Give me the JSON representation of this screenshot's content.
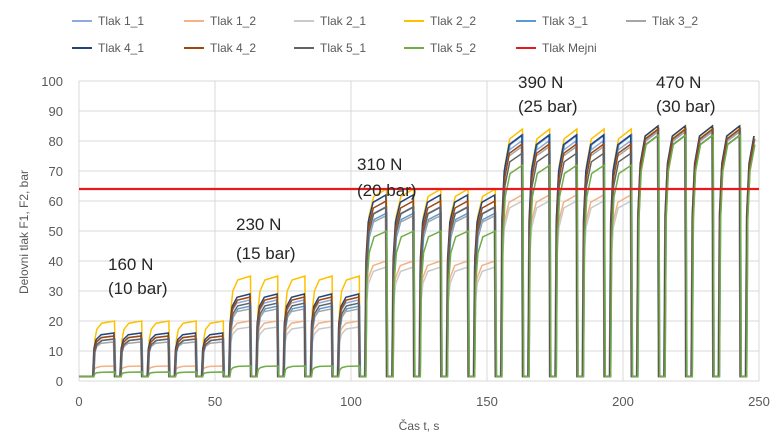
{
  "chart_data": {
    "type": "line",
    "xlabel": "Čas t, s",
    "ylabel": "Delovni tlak F1, F2, bar",
    "xlim": [
      0,
      250
    ],
    "ylim": [
      0,
      100
    ],
    "xticks": [
      "0",
      "50",
      "100",
      "150",
      "200",
      "250"
    ],
    "yticks": [
      "0",
      "10",
      "20",
      "30",
      "40",
      "50",
      "60",
      "70",
      "80",
      "90",
      "100"
    ],
    "grid": true,
    "legend_position": "top",
    "pulse_period_s": 10,
    "pulse_width_s": 8,
    "stages": [
      {
        "start": 0,
        "end": 50,
        "label_force": "160 N",
        "label_pressure": "(10 bar)"
      },
      {
        "start": 50,
        "end": 100,
        "label_force": "230 N",
        "label_pressure": "(15 bar)"
      },
      {
        "start": 100,
        "end": 150,
        "label_force": "310 N",
        "label_pressure": "(20 bar)"
      },
      {
        "start": 150,
        "end": 200,
        "label_force": "390 N",
        "label_pressure": "(25 bar)"
      },
      {
        "start": 200,
        "end": 250,
        "label_force": "470 N",
        "label_pressure": "(30 bar)"
      }
    ],
    "series": [
      {
        "name": "Tlak 1_1",
        "color": "#8faadc",
        "peaks": [
          15,
          27,
          58,
          80,
          83
        ]
      },
      {
        "name": "Tlak 1_2",
        "color": "#f4b183",
        "peaks": [
          5,
          20,
          40,
          62,
          84
        ]
      },
      {
        "name": "Tlak 2_1",
        "color": "#c9c9c9",
        "peaks": [
          3,
          18,
          38,
          60,
          82
        ]
      },
      {
        "name": "Tlak 2_2",
        "color": "#ffc000",
        "peaks": [
          20,
          35,
          64,
          84,
          85
        ]
      },
      {
        "name": "Tlak 3_1",
        "color": "#5b9bd5",
        "peaks": [
          14,
          25,
          56,
          82,
          84
        ]
      },
      {
        "name": "Tlak 3_2",
        "color": "#a5a5a5",
        "peaks": [
          13,
          24,
          55,
          78,
          83
        ]
      },
      {
        "name": "Tlak 4_1",
        "color": "#264478",
        "peaks": [
          16,
          29,
          62,
          82,
          85
        ]
      },
      {
        "name": "Tlak 4_2",
        "color": "#9e480e",
        "peaks": [
          15,
          28,
          60,
          79,
          84
        ]
      },
      {
        "name": "Tlak 5_1",
        "color": "#636363",
        "peaks": [
          14,
          26,
          58,
          76,
          82
        ]
      },
      {
        "name": "Tlak 5_2",
        "color": "#70ad47",
        "peaks": [
          3,
          5,
          50,
          72,
          82
        ]
      }
    ],
    "limit_line": {
      "name": "Tlak Mejni",
      "color": "#e41a1c",
      "value": 64
    }
  }
}
